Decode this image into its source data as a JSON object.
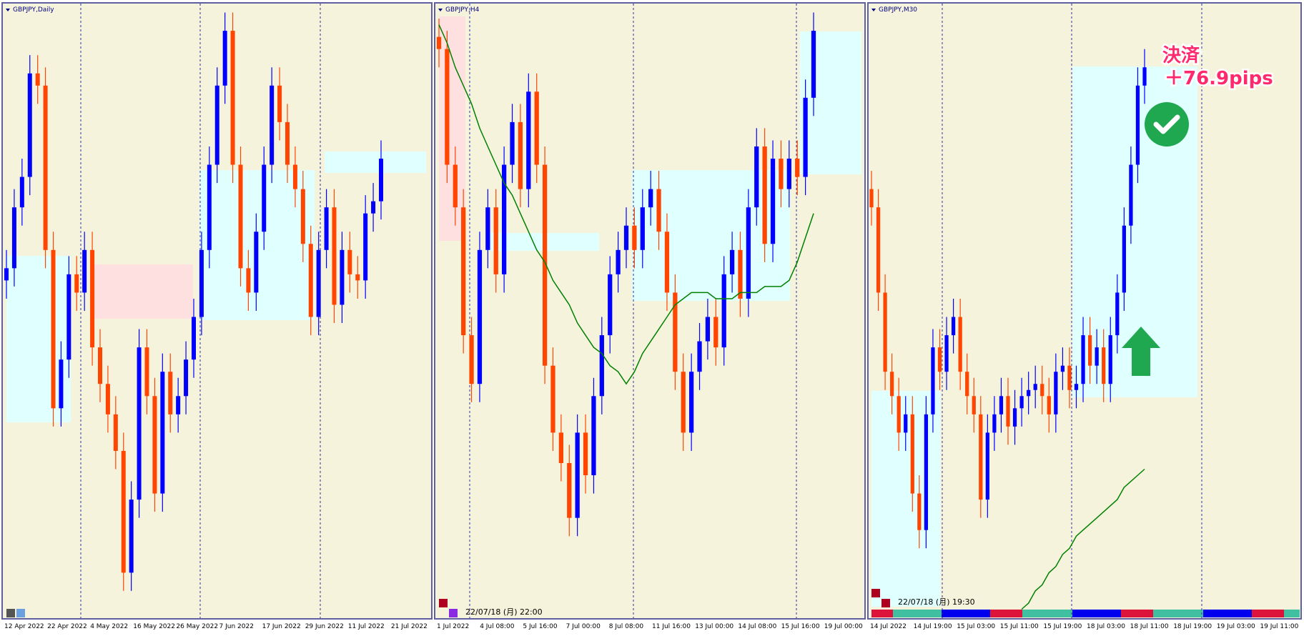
{
  "chart_data": [
    {
      "type": "candlestick",
      "title": "GBPJPY,Daily",
      "x_labels": [
        "12 Apr 2022",
        "22 Apr 2022",
        "4 May 2022",
        "16 May 2022",
        "26 May 2022",
        "7 Jun 2022",
        "17 Jun 2022",
        "29 Jun 2022",
        "11 Jul 2022",
        "21 Jul 2022"
      ],
      "ylim": [
        0,
        100
      ],
      "up_color": "#0000ff",
      "down_color": "#ff4500",
      "open": [
        55,
        57,
        67,
        72,
        89,
        87,
        60,
        34,
        42,
        56,
        53,
        60,
        44,
        38,
        33,
        27,
        7,
        19,
        44,
        36,
        20,
        40,
        33,
        36,
        42,
        49,
        60,
        74,
        87,
        96,
        74,
        57,
        53,
        63,
        74,
        87,
        81,
        74,
        70,
        61,
        49,
        60,
        67,
        51,
        60,
        56,
        55,
        66,
        68
      ],
      "high": [
        60,
        70,
        75,
        92,
        92,
        90,
        63,
        45,
        59,
        59,
        63,
        63,
        47,
        41,
        36,
        30,
        22,
        47,
        47,
        39,
        43,
        43,
        39,
        45,
        52,
        63,
        77,
        90,
        99,
        99,
        77,
        60,
        66,
        77,
        90,
        90,
        84,
        77,
        73,
        64,
        63,
        70,
        70,
        63,
        63,
        59,
        69,
        71,
        78
      ],
      "low": [
        52,
        54,
        64,
        69,
        84,
        57,
        31,
        31,
        39,
        50,
        50,
        41,
        35,
        30,
        24,
        4,
        4,
        16,
        33,
        17,
        17,
        30,
        30,
        33,
        39,
        46,
        57,
        71,
        84,
        71,
        54,
        50,
        50,
        60,
        71,
        78,
        71,
        67,
        58,
        46,
        46,
        57,
        48,
        48,
        53,
        52,
        52,
        63,
        65
      ],
      "close": [
        57,
        67,
        72,
        89,
        87,
        60,
        34,
        42,
        56,
        53,
        60,
        44,
        38,
        33,
        27,
        7,
        19,
        44,
        36,
        20,
        40,
        33,
        36,
        42,
        49,
        60,
        74,
        87,
        96,
        74,
        57,
        53,
        63,
        74,
        87,
        81,
        74,
        70,
        61,
        49,
        60,
        67,
        51,
        60,
        56,
        55,
        66,
        68,
        75
      ]
    },
    {
      "type": "candlestick",
      "title": "GBPJPY,H4",
      "timestamp": "22/07/18 (月) 22:00",
      "x_labels": [
        "1 Jul 2022",
        "4 Jul 08:00",
        "5 Jul 16:00",
        "7 Jul 00:00",
        "8 Jul 08:00",
        "11 Jul 16:00",
        "13 Jul 00:00",
        "14 Jul 08:00",
        "15 Jul 16:00",
        "19 Jul 00:00"
      ],
      "ylim": [
        0,
        100
      ],
      "up_color": "#0000ff",
      "down_color": "#ff4500",
      "open": [
        95,
        93,
        74,
        67,
        46,
        38,
        60,
        67,
        56,
        74,
        81,
        70,
        86,
        74,
        41,
        30,
        25,
        16,
        30,
        23,
        36,
        46,
        56,
        60,
        64,
        60,
        67,
        70,
        63,
        53,
        40,
        30,
        40,
        45,
        49,
        44,
        56,
        60,
        52,
        67,
        77,
        61,
        75,
        70,
        75,
        72,
        85
      ],
      "high": [
        98,
        96,
        77,
        70,
        49,
        63,
        70,
        70,
        77,
        84,
        84,
        89,
        89,
        77,
        44,
        33,
        28,
        33,
        33,
        39,
        49,
        59,
        63,
        67,
        67,
        70,
        73,
        73,
        66,
        56,
        43,
        43,
        48,
        52,
        52,
        59,
        63,
        63,
        70,
        80,
        80,
        78,
        78,
        78,
        78,
        88,
        99
      ],
      "low": [
        90,
        71,
        64,
        43,
        35,
        35,
        57,
        53,
        53,
        71,
        67,
        67,
        71,
        38,
        27,
        22,
        13,
        13,
        20,
        20,
        33,
        43,
        53,
        57,
        57,
        57,
        64,
        60,
        50,
        37,
        27,
        27,
        37,
        42,
        41,
        41,
        53,
        49,
        49,
        64,
        58,
        58,
        67,
        67,
        69,
        69,
        82
      ],
      "close": [
        93,
        74,
        67,
        46,
        38,
        60,
        67,
        56,
        74,
        81,
        70,
        86,
        74,
        41,
        30,
        25,
        16,
        30,
        23,
        36,
        46,
        56,
        60,
        64,
        60,
        67,
        70,
        63,
        53,
        40,
        30,
        40,
        45,
        49,
        44,
        56,
        60,
        52,
        67,
        77,
        61,
        75,
        70,
        75,
        72,
        85,
        96
      ],
      "ma": {
        "color": "#008000",
        "values": [
          97,
          94,
          90,
          87,
          84,
          80,
          77,
          74,
          71,
          69,
          66,
          63,
          60,
          58,
          55,
          53,
          51,
          48,
          46,
          44,
          43,
          41,
          40,
          38,
          40,
          43,
          45,
          47,
          49,
          51,
          52,
          53,
          53,
          53,
          52,
          52,
          52,
          53,
          53,
          53,
          54,
          54,
          54,
          55,
          58,
          62,
          66
        ]
      }
    },
    {
      "type": "candlestick",
      "title": "GBPJPY,M30",
      "timestamp": "22/07/18 (月) 19:30",
      "annotations": [
        "決済",
        "＋76.9pips"
      ],
      "x_labels": [
        "14 Jul 2022",
        "14 Jul 19:00",
        "15 Jul 03:00",
        "15 Jul 11:00",
        "15 Jul 19:00",
        "18 Jul 03:00",
        "18 Jul 11:00",
        "18 Jul 19:00",
        "19 Jul 03:00",
        "19 Jul 11:00"
      ],
      "ylim": [
        0,
        100
      ],
      "up_color": "#0000ff",
      "down_color": "#ff4500",
      "open": [
        70,
        67,
        53,
        40,
        36,
        30,
        33,
        20,
        14,
        33,
        44,
        40,
        46,
        49,
        40,
        36,
        33,
        19,
        30,
        33,
        36,
        31,
        34,
        36,
        37,
        38,
        36,
        33,
        40,
        41,
        37,
        38,
        46,
        41,
        44,
        38,
        46,
        53,
        64,
        74,
        87
      ],
      "high": [
        73,
        70,
        56,
        43,
        39,
        36,
        36,
        23,
        36,
        47,
        47,
        49,
        52,
        52,
        43,
        39,
        36,
        33,
        36,
        39,
        39,
        37,
        39,
        40,
        41,
        41,
        39,
        43,
        44,
        44,
        41,
        49,
        49,
        47,
        47,
        49,
        56,
        67,
        77,
        90,
        93
      ],
      "low": [
        64,
        50,
        37,
        33,
        27,
        27,
        17,
        11,
        11,
        30,
        37,
        37,
        43,
        37,
        33,
        30,
        16,
        16,
        27,
        30,
        28,
        28,
        31,
        33,
        34,
        33,
        30,
        30,
        37,
        34,
        34,
        35,
        38,
        38,
        35,
        35,
        43,
        50,
        61,
        71,
        84
      ],
      "close": [
        67,
        53,
        40,
        36,
        30,
        33,
        20,
        14,
        33,
        44,
        40,
        46,
        49,
        40,
        36,
        33,
        19,
        30,
        33,
        36,
        31,
        34,
        36,
        37,
        38,
        36,
        33,
        40,
        41,
        37,
        38,
        46,
        41,
        44,
        38,
        46,
        53,
        64,
        74,
        87,
        90
      ],
      "ma": {
        "color": "#008000",
        "values": [
          null,
          null,
          null,
          null,
          null,
          null,
          null,
          null,
          null,
          null,
          null,
          null,
          null,
          null,
          null,
          null,
          null,
          null,
          null,
          null,
          null,
          null,
          1,
          2,
          4,
          5,
          7,
          8,
          10,
          11,
          13,
          14,
          15,
          16,
          17,
          18,
          19,
          21,
          22,
          23,
          24
        ]
      }
    }
  ]
}
